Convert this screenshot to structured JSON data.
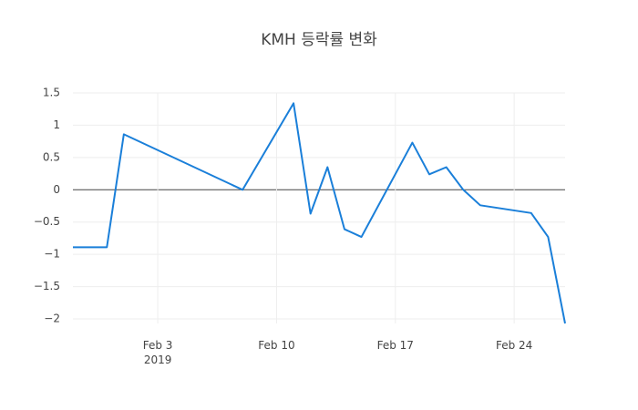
{
  "chart_data": {
    "type": "line",
    "title": "KMH 등락률 변화",
    "x": [
      "2019-01-29",
      "2019-01-31",
      "2019-02-01",
      "2019-02-08",
      "2019-02-11",
      "2019-02-12",
      "2019-02-13",
      "2019-02-14",
      "2019-02-15",
      "2019-02-18",
      "2019-02-19",
      "2019-02-20",
      "2019-02-21",
      "2019-02-22",
      "2019-02-25",
      "2019-02-26",
      "2019-02-27"
    ],
    "values": [
      -0.89,
      -0.89,
      0.86,
      0,
      1.34,
      -0.37,
      0.35,
      -0.61,
      -0.73,
      0.73,
      0.24,
      0.35,
      0,
      -0.24,
      -0.36,
      -0.73,
      -2.07
    ],
    "color": "#1a7fd9",
    "xlim": [
      "2019-01-29",
      "2019-02-27"
    ],
    "xticks": [
      {
        "value": "2019-02-03",
        "label": "Feb 3\n2019"
      },
      {
        "value": "2019-02-10",
        "label": "Feb 10"
      },
      {
        "value": "2019-02-17",
        "label": "Feb 17"
      },
      {
        "value": "2019-02-24",
        "label": "Feb 24"
      }
    ],
    "ylim": [
      -2.07,
      1.5
    ],
    "yticks": [
      {
        "value": -2,
        "label": "−2"
      },
      {
        "value": -1.5,
        "label": "−1.5"
      },
      {
        "value": -1,
        "label": "−1"
      },
      {
        "value": -0.5,
        "label": "−0.5"
      },
      0,
      0.5,
      1,
      1.5
    ],
    "grid": true,
    "zeroline": true
  }
}
